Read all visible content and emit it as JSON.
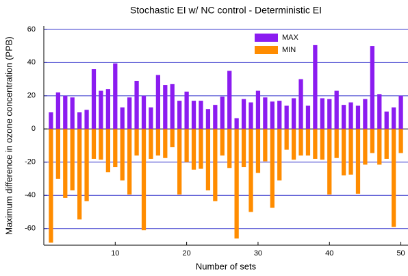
{
  "chart_data": {
    "type": "bar",
    "title": "Stochastic EI w/ NC control - Deterministic EI",
    "x_label": "Number of sets",
    "y_label": "Maximum difference in ozone concentration (PPB)",
    "x": [
      1,
      2,
      3,
      4,
      5,
      6,
      7,
      8,
      9,
      10,
      11,
      12,
      13,
      14,
      15,
      16,
      17,
      18,
      19,
      20,
      21,
      22,
      23,
      24,
      25,
      26,
      27,
      28,
      29,
      30,
      31,
      32,
      33,
      34,
      35,
      36,
      37,
      38,
      39,
      40,
      41,
      42,
      43,
      44,
      45,
      46,
      47,
      48,
      49,
      50
    ],
    "series": [
      {
        "name": "MAX",
        "color": "#8b1cf0",
        "values": [
          10,
          22,
          20,
          19,
          10,
          11.5,
          36,
          23,
          24,
          39.5,
          13,
          19,
          29,
          20,
          13,
          32.5,
          26.5,
          27,
          17,
          22.5,
          17,
          17,
          12,
          14.5,
          19.5,
          35,
          6.5,
          18,
          16,
          23,
          19,
          16.5,
          17,
          14,
          18.5,
          30,
          14,
          50.5,
          18.5,
          18,
          23,
          14.5,
          16,
          14,
          18,
          50,
          21,
          10.5,
          13,
          20
        ]
      },
      {
        "name": "MIN",
        "color": "#ff8c00",
        "values": [
          -68.5,
          -30,
          -41.5,
          -37,
          -54.5,
          -43.5,
          -18,
          -18.5,
          -26,
          -23,
          -31,
          -39.5,
          -16,
          -61,
          -18,
          -16,
          -17.5,
          -11,
          -39.5,
          -20,
          -24.5,
          -24,
          -37,
          -43.5,
          -16,
          -23.5,
          -66,
          -23,
          -50,
          -26.5,
          -19.5,
          -47.5,
          -31,
          -12.5,
          -18.5,
          -16,
          -16,
          -18,
          -18.5,
          -39.5,
          -17.5,
          -28,
          -27.5,
          -39,
          -21.5,
          -14.5,
          -21.5,
          -18,
          -59,
          -14.5
        ]
      }
    ],
    "xlim": [
      0,
      51
    ],
    "xticks": [
      10,
      20,
      30,
      40,
      50
    ],
    "ylim": [
      -70,
      62
    ],
    "yticks": [
      -60,
      -40,
      -20,
      0,
      20,
      40,
      60
    ],
    "grid": true,
    "grid_color": "#3333cc",
    "legend": "upper right"
  }
}
